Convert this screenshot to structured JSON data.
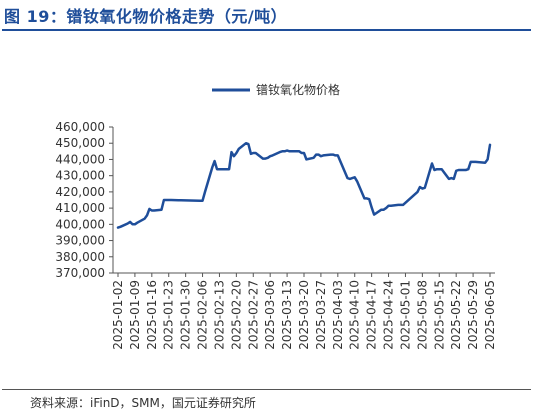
{
  "figure": {
    "title": "图 19：镨钕氧化物价格走势（元/吨）",
    "source": "资料来源：iFinD，SMM，国元证券研究所"
  },
  "chart_data": {
    "type": "line",
    "title": "",
    "xlabel": "",
    "ylabel": "",
    "ylim": [
      370000,
      460000
    ],
    "yticks": [
      370000,
      380000,
      390000,
      400000,
      410000,
      420000,
      430000,
      440000,
      450000,
      460000
    ],
    "ytick_labels": [
      "370,000",
      "380,000",
      "390,000",
      "400,000",
      "410,000",
      "420,000",
      "430,000",
      "440,000",
      "450,000",
      "460,000"
    ],
    "xtick_labels": [
      "2025-01-02",
      "2025-01-09",
      "2025-01-16",
      "2025-01-23",
      "2025-01-30",
      "2025-02-06",
      "2025-02-13",
      "2025-02-20",
      "2025-02-27",
      "2025-03-06",
      "2025-03-13",
      "2025-03-20",
      "2025-03-27",
      "2025-04-03",
      "2025-04-10",
      "2025-04-17",
      "2025-04-24",
      "2025-05-01",
      "2025-05-08",
      "2025-05-15",
      "2025-05-22",
      "2025-05-29",
      "2025-06-05"
    ],
    "legend_position": "top-center",
    "grid": false,
    "line_color": "#1f4e9a",
    "series": [
      {
        "name": "镨钕氧化物价格",
        "x": [
          "2025-01-02",
          "2025-01-03",
          "2025-01-06",
          "2025-01-07",
          "2025-01-08",
          "2025-01-09",
          "2025-01-10",
          "2025-01-13",
          "2025-01-14",
          "2025-01-15",
          "2025-01-16",
          "2025-01-17",
          "2025-01-20",
          "2025-01-21",
          "2025-01-22",
          "2025-01-23",
          "2025-01-24",
          "2025-01-27",
          "2025-01-28",
          "2025-02-05",
          "2025-02-06",
          "2025-02-07",
          "2025-02-10",
          "2025-02-11",
          "2025-02-12",
          "2025-02-13",
          "2025-02-14",
          "2025-02-17",
          "2025-02-18",
          "2025-02-19",
          "2025-02-20",
          "2025-02-21",
          "2025-02-24",
          "2025-02-25",
          "2025-02-26",
          "2025-02-27",
          "2025-02-28",
          "2025-03-03",
          "2025-03-04",
          "2025-03-05",
          "2025-03-06",
          "2025-03-07",
          "2025-03-10",
          "2025-03-11",
          "2025-03-12",
          "2025-03-13",
          "2025-03-14",
          "2025-03-17",
          "2025-03-18",
          "2025-03-19",
          "2025-03-20",
          "2025-03-21",
          "2025-03-24",
          "2025-03-25",
          "2025-03-26",
          "2025-03-27",
          "2025-03-28",
          "2025-03-31",
          "2025-04-01",
          "2025-04-02",
          "2025-04-03",
          "2025-04-07",
          "2025-04-08",
          "2025-04-09",
          "2025-04-10",
          "2025-04-11",
          "2025-04-14",
          "2025-04-15",
          "2025-04-16",
          "2025-04-17",
          "2025-04-18",
          "2025-04-21",
          "2025-04-22",
          "2025-04-23",
          "2025-04-24",
          "2025-04-25",
          "2025-04-28",
          "2025-04-29",
          "2025-04-30",
          "2025-05-06",
          "2025-05-07",
          "2025-05-08",
          "2025-05-09",
          "2025-05-12",
          "2025-05-13",
          "2025-05-14",
          "2025-05-15",
          "2025-05-16",
          "2025-05-19",
          "2025-05-20",
          "2025-05-21",
          "2025-05-22",
          "2025-05-23",
          "2025-05-26",
          "2025-05-27",
          "2025-05-28",
          "2025-05-29",
          "2025-05-30",
          "2025-06-03",
          "2025-06-04",
          "2025-06-05"
        ],
        "values": [
          398000,
          398500,
          400500,
          401500,
          400000,
          400000,
          401000,
          403500,
          405500,
          409500,
          408500,
          408500,
          409000,
          415000,
          415000,
          415000,
          415000,
          414800,
          414800,
          414500,
          414500,
          420000,
          435000,
          439000,
          434000,
          434000,
          434000,
          434000,
          444500,
          442000,
          444000,
          446500,
          450000,
          449500,
          443500,
          444000,
          444000,
          440500,
          440500,
          441000,
          442000,
          442500,
          444500,
          445000,
          445000,
          445500,
          445000,
          445000,
          445000,
          444000,
          444000,
          440000,
          441000,
          443000,
          443000,
          442000,
          442500,
          443000,
          443000,
          442500,
          442500,
          428500,
          428000,
          428500,
          429000,
          426500,
          416000,
          416000,
          415500,
          410500,
          406000,
          409000,
          409000,
          410000,
          411500,
          411500,
          412000,
          412000,
          412000,
          420000,
          423000,
          422000,
          422500,
          437500,
          433500,
          434000,
          434000,
          434000,
          428000,
          428500,
          428000,
          433000,
          433500,
          433500,
          434000,
          438500,
          438500,
          438500,
          438000,
          440000,
          449000
        ]
      }
    ]
  }
}
